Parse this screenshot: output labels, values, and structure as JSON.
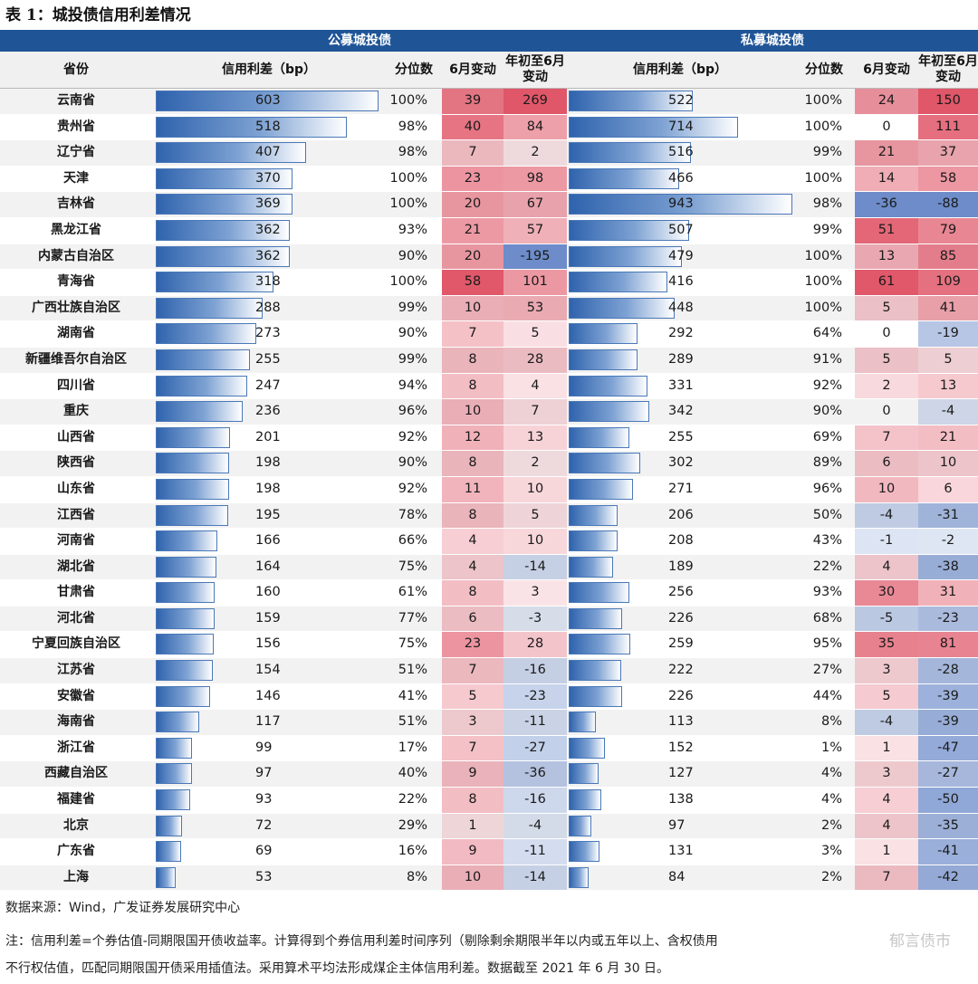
{
  "title": "表 1：城投债信用利差情况",
  "band_public": "公募城投债",
  "band_private": "私募城投债",
  "headers": {
    "province": "省份",
    "spread": "信用利差（bp）",
    "percentile": "分位数",
    "june": "6月变动",
    "ytd": "年初至6月变动"
  },
  "rows": [
    {
      "p": "云南省",
      "s1": 603,
      "q1": "100%",
      "c1": 39,
      "y1": 269,
      "s2": 522,
      "q2": "100%",
      "c2": 24,
      "y2": 150
    },
    {
      "p": "贵州省",
      "s1": 518,
      "q1": "98%",
      "c1": 40,
      "y1": 84,
      "s2": 714,
      "q2": "100%",
      "c2": 0,
      "y2": 111
    },
    {
      "p": "辽宁省",
      "s1": 407,
      "q1": "98%",
      "c1": 7,
      "y1": 2,
      "s2": 516,
      "q2": "99%",
      "c2": 21,
      "y2": 37
    },
    {
      "p": "天津",
      "s1": 370,
      "q1": "100%",
      "c1": 23,
      "y1": 98,
      "s2": 466,
      "q2": "100%",
      "c2": 14,
      "y2": 58
    },
    {
      "p": "吉林省",
      "s1": 369,
      "q1": "100%",
      "c1": 20,
      "y1": 67,
      "s2": 943,
      "q2": "98%",
      "c2": -36,
      "y2": -88
    },
    {
      "p": "黑龙江省",
      "s1": 362,
      "q1": "93%",
      "c1": 21,
      "y1": 57,
      "s2": 507,
      "q2": "99%",
      "c2": 51,
      "y2": 79
    },
    {
      "p": "内蒙古自治区",
      "s1": 362,
      "q1": "90%",
      "c1": 20,
      "y1": -195,
      "s2": 479,
      "q2": "100%",
      "c2": 13,
      "y2": 85
    },
    {
      "p": "青海省",
      "s1": 318,
      "q1": "100%",
      "c1": 58,
      "y1": 101,
      "s2": 416,
      "q2": "100%",
      "c2": 61,
      "y2": 109
    },
    {
      "p": "广西壮族自治区",
      "s1": 288,
      "q1": "99%",
      "c1": 10,
      "y1": 53,
      "s2": 448,
      "q2": "100%",
      "c2": 5,
      "y2": 41
    },
    {
      "p": "湖南省",
      "s1": 273,
      "q1": "90%",
      "c1": 7,
      "y1": 5,
      "s2": 292,
      "q2": "64%",
      "c2": 0,
      "y2": -19
    },
    {
      "p": "新疆维吾尔自治区",
      "s1": 255,
      "q1": "99%",
      "c1": 8,
      "y1": 28,
      "s2": 289,
      "q2": "91%",
      "c2": 5,
      "y2": 5
    },
    {
      "p": "四川省",
      "s1": 247,
      "q1": "94%",
      "c1": 8,
      "y1": 4,
      "s2": 331,
      "q2": "92%",
      "c2": 2,
      "y2": 13
    },
    {
      "p": "重庆",
      "s1": 236,
      "q1": "96%",
      "c1": 10,
      "y1": 7,
      "s2": 342,
      "q2": "90%",
      "c2": 0,
      "y2": -4
    },
    {
      "p": "山西省",
      "s1": 201,
      "q1": "92%",
      "c1": 12,
      "y1": 13,
      "s2": 255,
      "q2": "69%",
      "c2": 7,
      "y2": 21
    },
    {
      "p": "陕西省",
      "s1": 198,
      "q1": "90%",
      "c1": 8,
      "y1": 2,
      "s2": 302,
      "q2": "89%",
      "c2": 6,
      "y2": 10
    },
    {
      "p": "山东省",
      "s1": 198,
      "q1": "92%",
      "c1": 11,
      "y1": 10,
      "s2": 271,
      "q2": "96%",
      "c2": 10,
      "y2": 6
    },
    {
      "p": "江西省",
      "s1": 195,
      "q1": "78%",
      "c1": 8,
      "y1": 5,
      "s2": 206,
      "q2": "50%",
      "c2": -4,
      "y2": -31
    },
    {
      "p": "河南省",
      "s1": 166,
      "q1": "66%",
      "c1": 4,
      "y1": 10,
      "s2": 208,
      "q2": "43%",
      "c2": -1,
      "y2": -2
    },
    {
      "p": "湖北省",
      "s1": 164,
      "q1": "75%",
      "c1": 4,
      "y1": -14,
      "s2": 189,
      "q2": "22%",
      "c2": 4,
      "y2": -38
    },
    {
      "p": "甘肃省",
      "s1": 160,
      "q1": "61%",
      "c1": 8,
      "y1": 3,
      "s2": 256,
      "q2": "93%",
      "c2": 30,
      "y2": 31
    },
    {
      "p": "河北省",
      "s1": 159,
      "q1": "77%",
      "c1": 6,
      "y1": -3,
      "s2": 226,
      "q2": "68%",
      "c2": -5,
      "y2": -23
    },
    {
      "p": "宁夏回族自治区",
      "s1": 156,
      "q1": "75%",
      "c1": 23,
      "y1": 28,
      "s2": 259,
      "q2": "95%",
      "c2": 35,
      "y2": 81
    },
    {
      "p": "江苏省",
      "s1": 154,
      "q1": "51%",
      "c1": 7,
      "y1": -16,
      "s2": 222,
      "q2": "27%",
      "c2": 3,
      "y2": -28
    },
    {
      "p": "安徽省",
      "s1": 146,
      "q1": "41%",
      "c1": 5,
      "y1": -23,
      "s2": 226,
      "q2": "44%",
      "c2": 5,
      "y2": -39
    },
    {
      "p": "海南省",
      "s1": 117,
      "q1": "51%",
      "c1": 3,
      "y1": -11,
      "s2": 113,
      "q2": "8%",
      "c2": -4,
      "y2": -39
    },
    {
      "p": "浙江省",
      "s1": 99,
      "q1": "17%",
      "c1": 7,
      "y1": -27,
      "s2": 152,
      "q2": "1%",
      "c2": 1,
      "y2": -47
    },
    {
      "p": "西藏自治区",
      "s1": 97,
      "q1": "40%",
      "c1": 9,
      "y1": -36,
      "s2": 127,
      "q2": "4%",
      "c2": 3,
      "y2": -27
    },
    {
      "p": "福建省",
      "s1": 93,
      "q1": "22%",
      "c1": 8,
      "y1": -16,
      "s2": 138,
      "q2": "4%",
      "c2": 4,
      "y2": -50
    },
    {
      "p": "北京",
      "s1": 72,
      "q1": "29%",
      "c1": 1,
      "y1": -4,
      "s2": 97,
      "q2": "2%",
      "c2": 4,
      "y2": -35
    },
    {
      "p": "广东省",
      "s1": 69,
      "q1": "16%",
      "c1": 9,
      "y1": -11,
      "s2": 131,
      "q2": "3%",
      "c2": 1,
      "y2": -41
    },
    {
      "p": "上海",
      "s1": 53,
      "q1": "8%",
      "c1": 10,
      "y1": -14,
      "s2": 84,
      "q2": "2%",
      "c2": 7,
      "y2": -42
    }
  ],
  "source": "数据来源：Wind，广发证券发展研究中心",
  "note_line1": "注：信用利差=个券估值-同期限国开债收益率。计算得到个券信用利差时间序列（剔除剩余期限半年以内或五年以上、含权债用",
  "note_line2": "不行权估值，匹配同期限国开债采用插值法。采用算术平均法形成煤企主体信用利差。数据截至 2021 年 6 月 30 日。",
  "watermark": "郁言债市"
}
